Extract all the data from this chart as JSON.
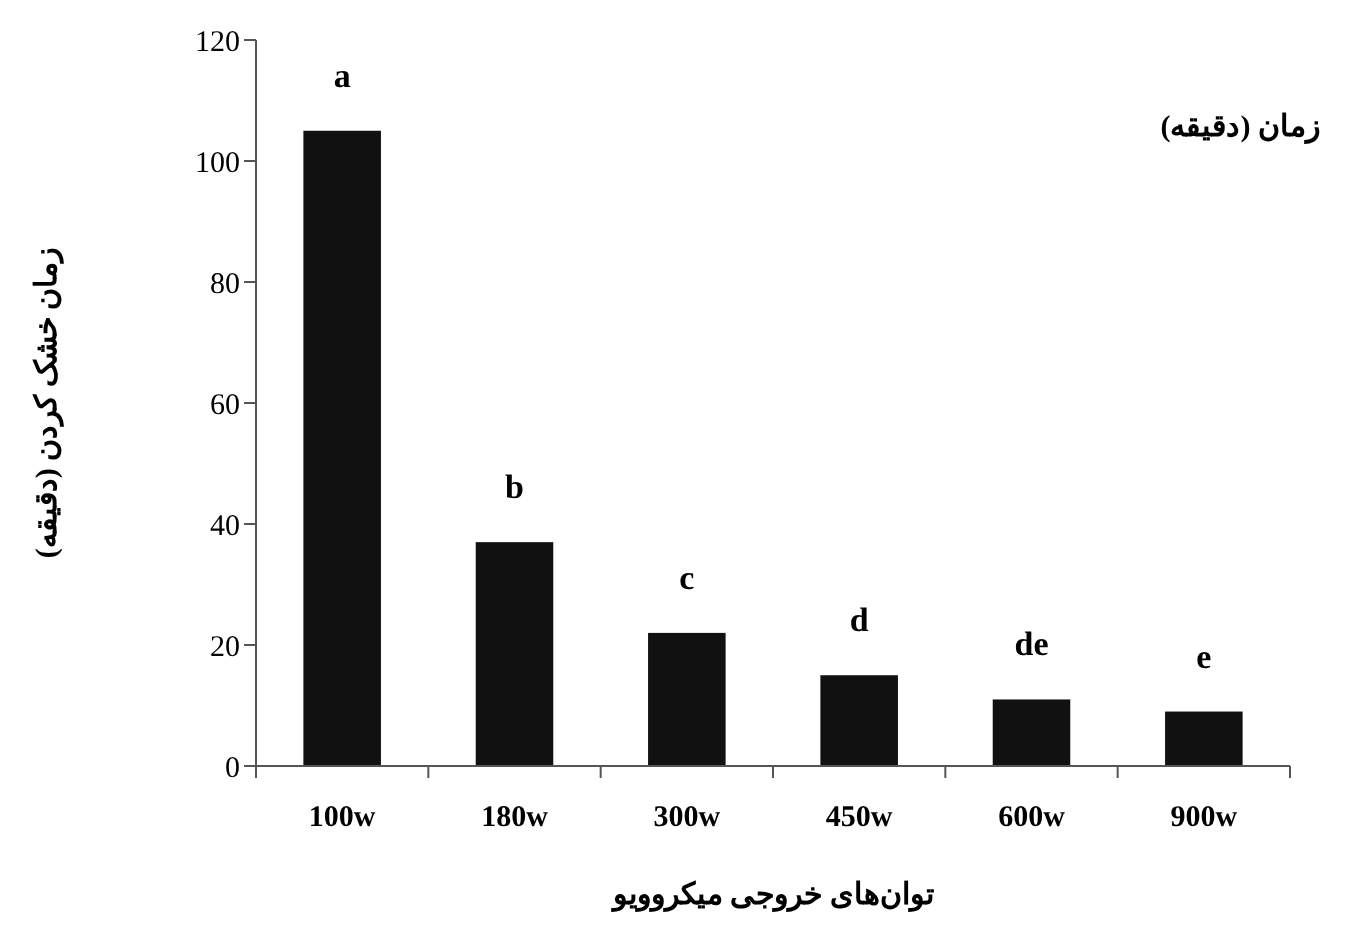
{
  "chart_data": {
    "type": "bar",
    "categories": [
      "100w",
      "180w",
      "300w",
      "450w",
      "600w",
      "900w"
    ],
    "values": [
      105,
      37,
      22,
      15,
      11,
      9
    ],
    "color": "#111111",
    "ylim": [
      0,
      120
    ],
    "yticks": [
      0,
      20,
      40,
      60,
      80,
      100,
      120
    ],
    "grid": false,
    "xlabel": "توان‌های خروجی میکروویو",
    "ylabel": "زمان خشک کردن (دقیقه)",
    "annotations": [
      "زمان (دقیقه)",
      {
        "text": "a",
        "x": "100w",
        "y": 105
      },
      {
        "text": "b",
        "x": "180w",
        "y": 37
      },
      {
        "text": "c",
        "x": "300w",
        "y": 22
      },
      {
        "text": "d",
        "x": "450w",
        "y": 15
      },
      {
        "text": "de",
        "x": "600w",
        "y": 11
      },
      {
        "text": "e",
        "x": "900w",
        "y": 9
      }
    ]
  }
}
